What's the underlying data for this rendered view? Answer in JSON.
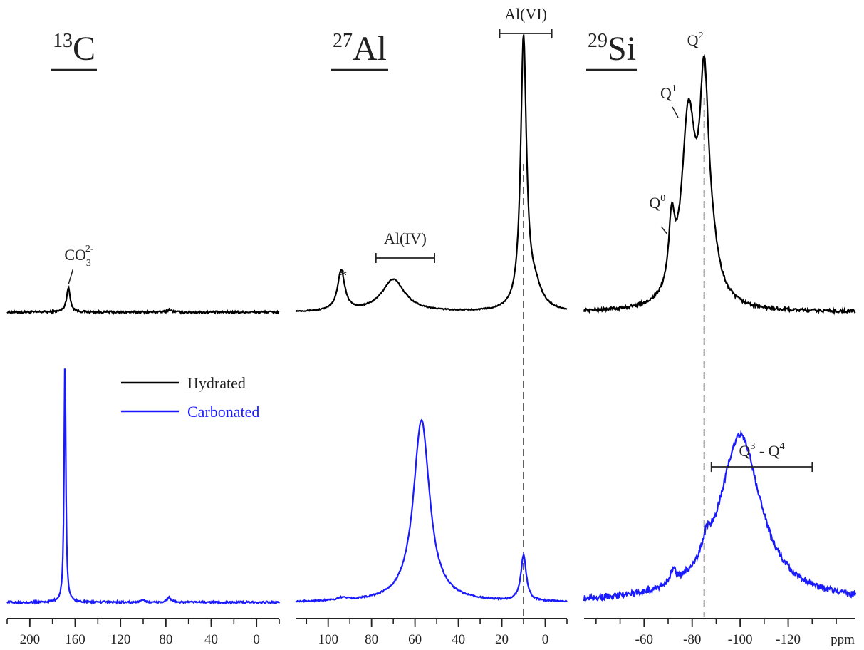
{
  "chart_data": {
    "type": "line",
    "legend": {
      "placement": "center-left",
      "entries": [
        {
          "label": "Hydrated",
          "color": "#000000"
        },
        {
          "label": "Carbonated",
          "color": "#1a1aff"
        }
      ]
    },
    "x_unit_label": "ppm",
    "panels": [
      {
        "nucleus_mass": "13",
        "nucleus_symbol": "C",
        "xlim": [
          220,
          -20
        ],
        "ticks": [
          200,
          160,
          120,
          80,
          40,
          0
        ],
        "tick_labels": [
          "200",
          "160",
          "120",
          "80",
          "40",
          "0"
        ],
        "minor_step": 20,
        "annotations": [
          {
            "text": "CO",
            "sub": "3",
            "sup": "2-",
            "x": 167
          }
        ],
        "series": [
          {
            "name": "Hydrated",
            "color": "#000000",
            "baseline": 0.05,
            "noise": 0.004,
            "peaks": [
              {
                "x": 166,
                "h": 0.09,
                "w": 2.0
              },
              {
                "x": 77,
                "h": 0.01,
                "w": 2.0
              }
            ]
          },
          {
            "name": "Carbonated",
            "color": "#1a1aff",
            "baseline": 0.05,
            "noise": 0.004,
            "peaks": [
              {
                "x": 169,
                "h": 0.95,
                "w": 0.9
              },
              {
                "x": 77,
                "h": 0.02,
                "w": 2.0
              },
              {
                "x": 100,
                "h": 0.008,
                "w": 2.0
              }
            ]
          }
        ]
      },
      {
        "nucleus_mass": "27",
        "nucleus_symbol": "Al",
        "xlim": [
          115,
          -10
        ],
        "ticks": [
          100,
          80,
          60,
          40,
          20,
          0
        ],
        "tick_labels": [
          "100",
          "80",
          "60",
          "40",
          "20",
          "0"
        ],
        "minor_step": 10,
        "annotations": [
          {
            "text": "*",
            "x": 93
          },
          {
            "text": "Al(IV)",
            "x_from": 78,
            "x_to": 51
          },
          {
            "text": "Al(VI)",
            "x_from": 21,
            "x_to": -3
          }
        ],
        "series": [
          {
            "name": "Hydrated",
            "color": "#000000",
            "baseline": 0.05,
            "noise": 0.002,
            "peaks": [
              {
                "x": 94,
                "h": 0.15,
                "w": 2.0
              },
              {
                "x": 70,
                "h": 0.12,
                "w": 6.5
              },
              {
                "x": 10,
                "h": 1.0,
                "w": 1.6
              },
              {
                "x": 5,
                "h": 0.08,
                "w": 4.0
              }
            ]
          },
          {
            "name": "Carbonated",
            "color": "#1a1aff",
            "baseline": 0.05,
            "noise": 0.003,
            "peaks": [
              {
                "x": 57,
                "h": 0.72,
                "w": 4.5
              },
              {
                "x": 10,
                "h": 0.18,
                "w": 1.5
              },
              {
                "x": 93,
                "h": 0.01,
                "w": 3.0
              }
            ]
          }
        ]
      },
      {
        "nucleus_mass": "29",
        "nucleus_symbol": "Si",
        "xlim": [
          -35,
          -148
        ],
        "ticks": [
          -60,
          -80,
          -100,
          -120
        ],
        "tick_labels": [
          "-60",
          "-80",
          "-100",
          "-120"
        ],
        "minor_step": 10,
        "annotations": [
          {
            "text": "Q",
            "sup": "0",
            "x": -71
          },
          {
            "text": "Q",
            "sup": "1",
            "x": -78
          },
          {
            "text": "Q",
            "sup": "2",
            "x": -85
          },
          {
            "text": "Q",
            "sup": "3",
            "text2": " - Q",
            "sup2": "4",
            "x_from": -88,
            "x_to": -130
          }
        ],
        "series": [
          {
            "name": "Hydrated",
            "color": "#000000",
            "baseline": 0.05,
            "noise": 0.006,
            "peaks": [
              {
                "x": -71.5,
                "h": 0.24,
                "w": 1.5
              },
              {
                "x": -78.5,
                "h": 0.68,
                "w": 3.5
              },
              {
                "x": -85,
                "h": 0.72,
                "w": 2.3
              },
              {
                "x": -88,
                "h": 0.12,
                "w": 4.0
              }
            ]
          },
          {
            "name": "Carbonated",
            "color": "#1a1aff",
            "baseline": 0.05,
            "noise": 0.012,
            "peaks": [
              {
                "x": -100,
                "h": 0.66,
                "w": 10.5
              },
              {
                "x": -72,
                "h": 0.05,
                "w": 1.5
              },
              {
                "x": -86,
                "h": 0.06,
                "w": 2.0
              }
            ]
          }
        ]
      }
    ],
    "guides": [
      {
        "panel": 1,
        "x": 10
      },
      {
        "panel": 2,
        "x": -85
      }
    ]
  }
}
